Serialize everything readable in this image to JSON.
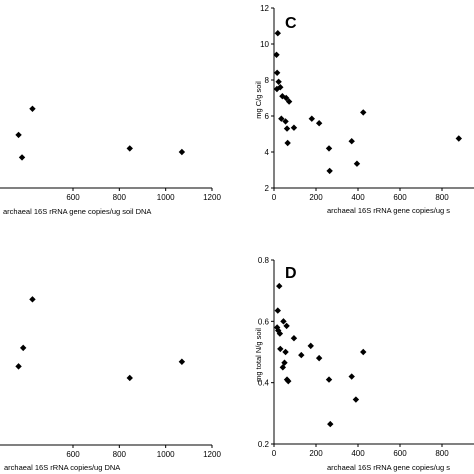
{
  "chart_data": [
    {
      "id": "panel-left-top",
      "type": "scatter",
      "panel_label": "",
      "xlabel": "archaeal 16S rRNA gene copies/ug soil DNA",
      "ylabel": "",
      "xlim": [
        0,
        1200
      ],
      "xticks": [
        "600",
        "800",
        "1000",
        "1200"
      ],
      "grid": false,
      "points": [
        {
          "x": 365,
          "y": 4.95
        },
        {
          "x": 380,
          "y": 3.7
        },
        {
          "x": 425,
          "y": 6.4
        },
        {
          "x": 845,
          "y": 4.2
        },
        {
          "x": 1070,
          "y": 4.0
        }
      ]
    },
    {
      "id": "panel-C",
      "type": "scatter",
      "panel_label": "C",
      "xlabel": "archaeal 16S rRNA gene copies/ug s",
      "ylabel": "mg C/g soil",
      "xlim": [
        0,
        900
      ],
      "ylim": [
        2,
        12
      ],
      "xticks": [
        "0",
        "200",
        "400",
        "600",
        "800"
      ],
      "yticks": [
        "2",
        "4",
        "6",
        "8",
        "10",
        "12"
      ],
      "grid": false,
      "points": [
        {
          "x": 18,
          "y": 10.6
        },
        {
          "x": 12,
          "y": 9.4
        },
        {
          "x": 15,
          "y": 8.4
        },
        {
          "x": 22,
          "y": 7.9
        },
        {
          "x": 30,
          "y": 7.6
        },
        {
          "x": 14,
          "y": 7.5
        },
        {
          "x": 40,
          "y": 7.1
        },
        {
          "x": 58,
          "y": 7.0
        },
        {
          "x": 72,
          "y": 6.8
        },
        {
          "x": 35,
          "y": 5.85
        },
        {
          "x": 55,
          "y": 5.7
        },
        {
          "x": 62,
          "y": 5.3
        },
        {
          "x": 95,
          "y": 5.35
        },
        {
          "x": 65,
          "y": 4.5
        },
        {
          "x": 180,
          "y": 5.85
        },
        {
          "x": 215,
          "y": 5.6
        },
        {
          "x": 262,
          "y": 4.2
        },
        {
          "x": 265,
          "y": 2.95
        },
        {
          "x": 370,
          "y": 4.6
        },
        {
          "x": 395,
          "y": 3.35
        },
        {
          "x": 425,
          "y": 6.2
        },
        {
          "x": 880,
          "y": 4.75
        }
      ]
    },
    {
      "id": "panel-left-bottom",
      "type": "scatter",
      "panel_label": "",
      "xlabel": "archaeal 16S rRNA copies/ug DNA",
      "ylabel": "",
      "xlim": [
        0,
        1200
      ],
      "xticks": [
        "600",
        "800",
        "1000",
        "1200"
      ],
      "grid": false,
      "points": [
        {
          "x": 365,
          "y": 0.54
        },
        {
          "x": 385,
          "y": 0.62
        },
        {
          "x": 425,
          "y": 0.83
        },
        {
          "x": 845,
          "y": 0.49
        },
        {
          "x": 1070,
          "y": 0.56
        }
      ]
    },
    {
      "id": "panel-D",
      "type": "scatter",
      "panel_label": "D",
      "xlabel": "archaeal 16S rRNA gene copies/ug s",
      "ylabel": "mg total N/g soil",
      "xlim": [
        0,
        900
      ],
      "ylim": [
        0.2,
        0.8
      ],
      "xticks": [
        "0",
        "200",
        "400",
        "600",
        "800"
      ],
      "yticks": [
        "0.2",
        "0.4",
        "0.6",
        "0.8"
      ],
      "grid": false,
      "points": [
        {
          "x": 25,
          "y": 0.715
        },
        {
          "x": 18,
          "y": 0.635
        },
        {
          "x": 15,
          "y": 0.58
        },
        {
          "x": 20,
          "y": 0.57
        },
        {
          "x": 28,
          "y": 0.56
        },
        {
          "x": 45,
          "y": 0.6
        },
        {
          "x": 60,
          "y": 0.585
        },
        {
          "x": 95,
          "y": 0.545
        },
        {
          "x": 30,
          "y": 0.51
        },
        {
          "x": 55,
          "y": 0.5
        },
        {
          "x": 42,
          "y": 0.45
        },
        {
          "x": 50,
          "y": 0.465
        },
        {
          "x": 62,
          "y": 0.41
        },
        {
          "x": 68,
          "y": 0.405
        },
        {
          "x": 130,
          "y": 0.49
        },
        {
          "x": 175,
          "y": 0.52
        },
        {
          "x": 215,
          "y": 0.48
        },
        {
          "x": 262,
          "y": 0.41
        },
        {
          "x": 268,
          "y": 0.265
        },
        {
          "x": 370,
          "y": 0.42
        },
        {
          "x": 390,
          "y": 0.345
        },
        {
          "x": 425,
          "y": 0.5
        }
      ]
    }
  ]
}
